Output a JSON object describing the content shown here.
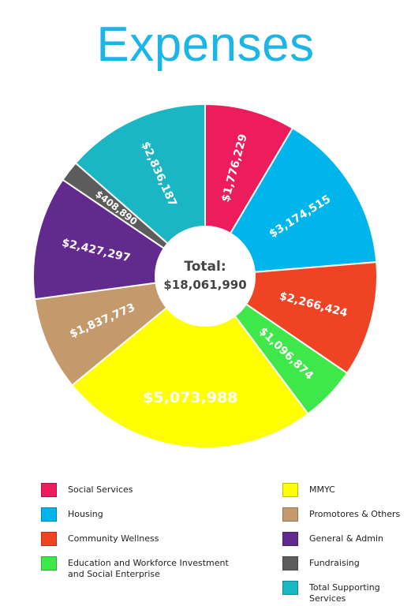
{
  "chart_data": {
    "type": "pie",
    "title": "Expenses",
    "center_label": "Total:",
    "center_value": "$18,061,990",
    "slices": [
      {
        "name": "Social Services",
        "value": 1776229,
        "label": "$1,776,229",
        "color": "#ed1c5c"
      },
      {
        "name": "Housing",
        "value": 3174515,
        "label": "$3,174,515",
        "color": "#00b4ec"
      },
      {
        "name": "Community Wellness",
        "value": 2266424,
        "label": "$2,266,424",
        "color": "#ef4423"
      },
      {
        "name": "Education and Workforce Investment and Social Enterprise",
        "value": 1096874,
        "label": "$1,096,874",
        "color": "#3ee84b"
      },
      {
        "name": "MMYC",
        "value": 5073988,
        "label": "$5,073,988",
        "color": "#ffff00"
      },
      {
        "name": "Promotores & Others",
        "value": 1837773,
        "label": "$1,837,773",
        "color": "#c49a6c"
      },
      {
        "name": "General & Admin",
        "value": 2427297,
        "label": "$2,427,297",
        "color": "#62298f"
      },
      {
        "name": "Fundraising",
        "value": 408890,
        "label": "$408,890",
        "color": "#5c5c5c"
      },
      {
        "name": "Total Supporting Services",
        "value": 2836187,
        "label": "$2,836,187",
        "color": "#1bb6c4"
      }
    ],
    "legend_placement": "bottom"
  }
}
